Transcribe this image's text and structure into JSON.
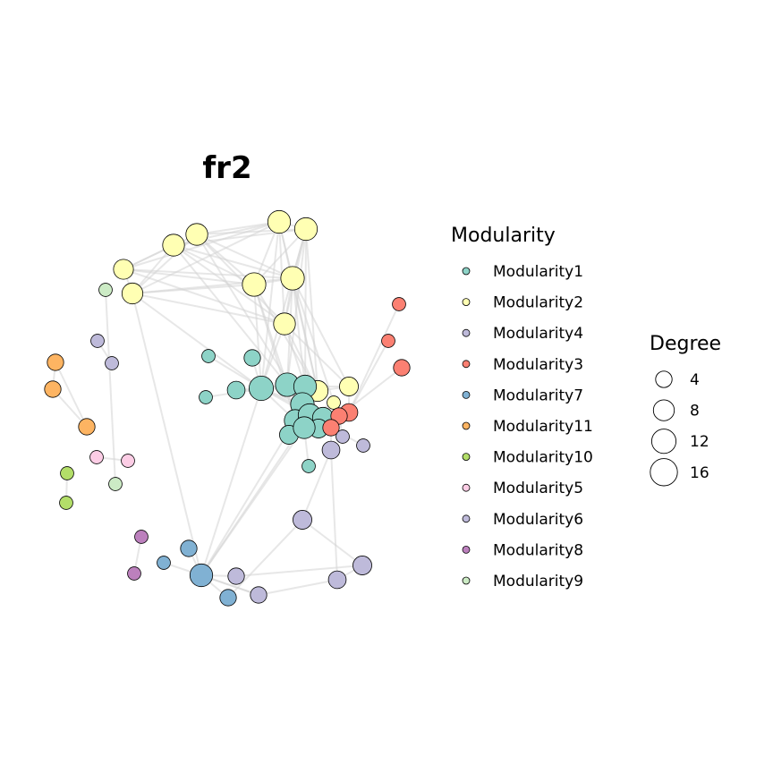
{
  "title": "fr2",
  "legend_modularity": {
    "title": "Modularity",
    "items": [
      {
        "label": "Modularity1",
        "color": "#8DD3C7"
      },
      {
        "label": "Modularity2",
        "color": "#FFFFB3"
      },
      {
        "label": "Modularity4",
        "color": "#BEBADA"
      },
      {
        "label": "Modularity3",
        "color": "#FB8072"
      },
      {
        "label": "Modularity7",
        "color": "#80B1D3"
      },
      {
        "label": "Modularity11",
        "color": "#FDB462"
      },
      {
        "label": "Modularity10",
        "color": "#B3DE69"
      },
      {
        "label": "Modularity5",
        "color": "#FCCDE5"
      },
      {
        "label": "Modularity6",
        "color": "#BEBADA"
      },
      {
        "label": "Modularity8",
        "color": "#BC80BD"
      },
      {
        "label": "Modularity9",
        "color": "#CCEBC5"
      }
    ]
  },
  "legend_degree": {
    "title": "Degree",
    "items": [
      {
        "label": "4",
        "degree": 4
      },
      {
        "label": "8",
        "degree": 8
      },
      {
        "label": "12",
        "degree": 12
      },
      {
        "label": "16",
        "degree": 16
      }
    ]
  },
  "network": {
    "layout": "fr",
    "nodes": [
      {
        "id": "a1",
        "group": "Modularity2",
        "degree": 10
      },
      {
        "id": "a2",
        "group": "Modularity2",
        "degree": 10
      },
      {
        "id": "a3",
        "group": "Modularity2",
        "degree": 9
      },
      {
        "id": "a4",
        "group": "Modularity2",
        "degree": 9
      },
      {
        "id": "a5",
        "group": "Modularity2",
        "degree": 7
      },
      {
        "id": "a6",
        "group": "Modularity2",
        "degree": 8
      },
      {
        "id": "a7",
        "group": "Modularity2",
        "degree": 11
      },
      {
        "id": "a8",
        "group": "Modularity2",
        "degree": 11
      },
      {
        "id": "a9",
        "group": "Modularity2",
        "degree": 9
      },
      {
        "id": "a10",
        "group": "Modularity2",
        "degree": 8
      },
      {
        "id": "a11",
        "group": "Modularity2",
        "degree": 6
      },
      {
        "id": "a12",
        "group": "Modularity2",
        "degree": 2
      },
      {
        "id": "b1",
        "group": "Modularity1",
        "degree": 2
      },
      {
        "id": "b2",
        "group": "Modularity1",
        "degree": 4
      },
      {
        "id": "b3",
        "group": "Modularity1",
        "degree": 2
      },
      {
        "id": "b4",
        "group": "Modularity1",
        "degree": 5
      },
      {
        "id": "b5",
        "group": "Modularity1",
        "degree": 11
      },
      {
        "id": "b6",
        "group": "Modularity1",
        "degree": 12
      },
      {
        "id": "b7",
        "group": "Modularity1",
        "degree": 10
      },
      {
        "id": "b8",
        "group": "Modularity1",
        "degree": 11
      },
      {
        "id": "b9",
        "group": "Modularity1",
        "degree": 9
      },
      {
        "id": "b10",
        "group": "Modularity1",
        "degree": 10
      },
      {
        "id": "b11",
        "group": "Modularity1",
        "degree": 8
      },
      {
        "id": "b12",
        "group": "Modularity1",
        "degree": 6
      },
      {
        "id": "b13",
        "group": "Modularity1",
        "degree": 6
      },
      {
        "id": "b14",
        "group": "Modularity1",
        "degree": 9
      },
      {
        "id": "b15",
        "group": "Modularity1",
        "degree": 2
      },
      {
        "id": "c1",
        "group": "Modularity3",
        "degree": 2
      },
      {
        "id": "c2",
        "group": "Modularity3",
        "degree": 2
      },
      {
        "id": "c3",
        "group": "Modularity3",
        "degree": 4
      },
      {
        "id": "c4",
        "group": "Modularity3",
        "degree": 5
      },
      {
        "id": "c5",
        "group": "Modularity3",
        "degree": 4
      },
      {
        "id": "c6",
        "group": "Modularity3",
        "degree": 4
      },
      {
        "id": "d1",
        "group": "Modularity4",
        "degree": 2
      },
      {
        "id": "d2",
        "group": "Modularity4",
        "degree": 2
      },
      {
        "id": "d3",
        "group": "Modularity4",
        "degree": 5
      },
      {
        "id": "d4",
        "group": "Modularity4",
        "degree": 6
      },
      {
        "id": "d5",
        "group": "Modularity4",
        "degree": 5
      },
      {
        "id": "d6",
        "group": "Modularity4",
        "degree": 6
      },
      {
        "id": "d7",
        "group": "Modularity4",
        "degree": 4
      },
      {
        "id": "d8",
        "group": "Modularity4",
        "degree": 4
      },
      {
        "id": "e1",
        "group": "Modularity7",
        "degree": 4
      },
      {
        "id": "e2",
        "group": "Modularity7",
        "degree": 2
      },
      {
        "id": "e3",
        "group": "Modularity7",
        "degree": 10
      },
      {
        "id": "e4",
        "group": "Modularity7",
        "degree": 4
      },
      {
        "id": "f1",
        "group": "Modularity11",
        "degree": 4
      },
      {
        "id": "f2",
        "group": "Modularity11",
        "degree": 4
      },
      {
        "id": "f3",
        "group": "Modularity11",
        "degree": 4
      },
      {
        "id": "g1",
        "group": "Modularity10",
        "degree": 2
      },
      {
        "id": "g2",
        "group": "Modularity10",
        "degree": 2
      },
      {
        "id": "h1",
        "group": "Modularity5",
        "degree": 2
      },
      {
        "id": "h2",
        "group": "Modularity5",
        "degree": 2
      },
      {
        "id": "i1",
        "group": "Modularity6",
        "degree": 2
      },
      {
        "id": "i2",
        "group": "Modularity6",
        "degree": 2
      },
      {
        "id": "j1",
        "group": "Modularity8",
        "degree": 2
      },
      {
        "id": "j2",
        "group": "Modularity8",
        "degree": 2
      },
      {
        "id": "k1",
        "group": "Modularity9",
        "degree": 2
      },
      {
        "id": "k2",
        "group": "Modularity9",
        "degree": 2
      }
    ],
    "edges": [
      [
        "a1",
        "a2"
      ],
      [
        "a1",
        "a3"
      ],
      [
        "a1",
        "a4"
      ],
      [
        "a1",
        "a5"
      ],
      [
        "a1",
        "a6"
      ],
      [
        "a1",
        "a7"
      ],
      [
        "a1",
        "a8"
      ],
      [
        "a1",
        "a9"
      ],
      [
        "a1",
        "a10"
      ],
      [
        "a1",
        "b6"
      ],
      [
        "a2",
        "a3"
      ],
      [
        "a2",
        "a4"
      ],
      [
        "a2",
        "a7"
      ],
      [
        "a2",
        "a8"
      ],
      [
        "a2",
        "a9"
      ],
      [
        "a2",
        "b5"
      ],
      [
        "a2",
        "b6"
      ],
      [
        "a2",
        "b7"
      ],
      [
        "a2",
        "a10"
      ],
      [
        "a3",
        "a5"
      ],
      [
        "a3",
        "a6"
      ],
      [
        "a3",
        "a7"
      ],
      [
        "a3",
        "a8"
      ],
      [
        "a3",
        "a9"
      ],
      [
        "a3",
        "b8"
      ],
      [
        "a4",
        "a5"
      ],
      [
        "a4",
        "a6"
      ],
      [
        "a4",
        "a7"
      ],
      [
        "a4",
        "a8"
      ],
      [
        "a4",
        "a9"
      ],
      [
        "a4",
        "b5"
      ],
      [
        "a5",
        "a6"
      ],
      [
        "a5",
        "a7"
      ],
      [
        "a5",
        "a8"
      ],
      [
        "a5",
        "a9"
      ],
      [
        "a6",
        "a7"
      ],
      [
        "a6",
        "a8"
      ],
      [
        "a6",
        "a9"
      ],
      [
        "a6",
        "b6"
      ],
      [
        "a7",
        "a8"
      ],
      [
        "a7",
        "a10"
      ],
      [
        "a7",
        "b5"
      ],
      [
        "a7",
        "b6"
      ],
      [
        "a7",
        "b9"
      ],
      [
        "a8",
        "a9"
      ],
      [
        "a8",
        "a10"
      ],
      [
        "a8",
        "b5"
      ],
      [
        "a8",
        "b7"
      ],
      [
        "a8",
        "a11"
      ],
      [
        "a8",
        "a12"
      ],
      [
        "a9",
        "a10"
      ],
      [
        "a9",
        "b6"
      ],
      [
        "a9",
        "b7"
      ],
      [
        "a9",
        "a11"
      ],
      [
        "a10",
        "b5"
      ],
      [
        "a10",
        "b6"
      ],
      [
        "a10",
        "b8"
      ],
      [
        "a10",
        "a11"
      ],
      [
        "a11",
        "c4"
      ],
      [
        "a11",
        "b7"
      ],
      [
        "a12",
        "b10"
      ],
      [
        "b1",
        "b6"
      ],
      [
        "b3",
        "b5"
      ],
      [
        "b2",
        "b6"
      ],
      [
        "b4",
        "b6"
      ],
      [
        "b5",
        "b6"
      ],
      [
        "b5",
        "b7"
      ],
      [
        "b5",
        "b8"
      ],
      [
        "b5",
        "b9"
      ],
      [
        "b6",
        "b7"
      ],
      [
        "b6",
        "b8"
      ],
      [
        "b6",
        "b9"
      ],
      [
        "b6",
        "b10"
      ],
      [
        "b6",
        "b11"
      ],
      [
        "b7",
        "b8"
      ],
      [
        "b7",
        "b9"
      ],
      [
        "b7",
        "b10"
      ],
      [
        "b8",
        "b9"
      ],
      [
        "b8",
        "b12"
      ],
      [
        "b8",
        "b13"
      ],
      [
        "b9",
        "b10"
      ],
      [
        "b9",
        "b14"
      ],
      [
        "b10",
        "b11"
      ],
      [
        "b10",
        "b14"
      ],
      [
        "b11",
        "b12"
      ],
      [
        "b12",
        "b13"
      ],
      [
        "b13",
        "b14"
      ],
      [
        "b14",
        "b15"
      ],
      [
        "b10",
        "c4"
      ],
      [
        "b13",
        "c6"
      ],
      [
        "c1",
        "c4"
      ],
      [
        "c2",
        "c4"
      ],
      [
        "c3",
        "c5"
      ],
      [
        "c4",
        "c5"
      ],
      [
        "c5",
        "c6"
      ],
      [
        "d3",
        "c6"
      ],
      [
        "d3",
        "d4"
      ],
      [
        "d3",
        "d5"
      ],
      [
        "d4",
        "d6"
      ],
      [
        "d5",
        "d6"
      ],
      [
        "d5",
        "d7"
      ],
      [
        "d6",
        "d8"
      ],
      [
        "d7",
        "e3"
      ],
      [
        "d8",
        "e3"
      ],
      [
        "d4",
        "e4"
      ],
      [
        "d2",
        "c5"
      ],
      [
        "d1",
        "c6"
      ],
      [
        "e3",
        "b14"
      ],
      [
        "e3",
        "b6"
      ],
      [
        "e3",
        "a6"
      ],
      [
        "e3",
        "b9"
      ],
      [
        "e3",
        "b10"
      ],
      [
        "e3",
        "e1"
      ],
      [
        "e3",
        "e2"
      ],
      [
        "e3",
        "e4"
      ],
      [
        "e3",
        "d7"
      ],
      [
        "f1",
        "f2"
      ],
      [
        "f2",
        "f3"
      ],
      [
        "f1",
        "f3"
      ],
      [
        "g1",
        "g2"
      ],
      [
        "h1",
        "h2"
      ],
      [
        "i1",
        "i2"
      ],
      [
        "j1",
        "j2"
      ],
      [
        "k1",
        "k2"
      ]
    ]
  }
}
